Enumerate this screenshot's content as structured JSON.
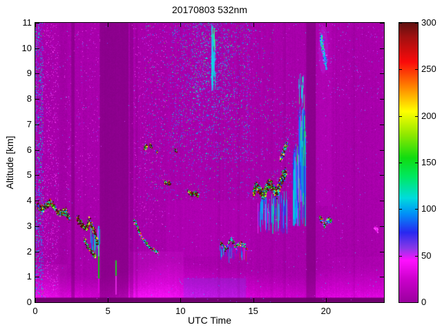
{
  "chart_data": {
    "type": "heatmap",
    "title": "20170803 532nm",
    "xlabel": "UTC Time",
    "ylabel": "Altitude [km]",
    "xlim": [
      0,
      24
    ],
    "ylim": [
      0,
      11
    ],
    "xticks": [
      0,
      5,
      10,
      15,
      20
    ],
    "yticks": [
      0,
      1,
      2,
      3,
      4,
      5,
      6,
      7,
      8,
      9,
      10,
      11
    ],
    "colorbar": {
      "min": 0,
      "max": 300,
      "ticks": [
        0,
        50,
        100,
        150,
        200,
        250,
        300
      ],
      "stops": [
        [
          0,
          "#9A009E"
        ],
        [
          25,
          "#CC00CC"
        ],
        [
          45,
          "#FF10FF"
        ],
        [
          58,
          "#8838E8"
        ],
        [
          75,
          "#2828F0"
        ],
        [
          95,
          "#0090F8"
        ],
        [
          112,
          "#00DCDC"
        ],
        [
          135,
          "#00E860"
        ],
        [
          155,
          "#10DC10"
        ],
        [
          180,
          "#90E800"
        ],
        [
          205,
          "#FFFF00"
        ],
        [
          232,
          "#FF8000"
        ],
        [
          258,
          "#FA0A0A"
        ],
        [
          285,
          "#A01010"
        ],
        [
          300,
          "#5E1010"
        ]
      ]
    },
    "scene": {
      "background": {
        "base": 3,
        "amp": 9
      },
      "boundary_layer": {
        "k": [
          [
            0,
            14
          ],
          [
            2,
            12
          ],
          [
            4,
            10
          ],
          [
            4.5,
            9
          ],
          [
            6.6,
            16
          ],
          [
            9,
            15
          ],
          [
            11,
            12
          ],
          [
            14,
            11
          ],
          [
            17,
            10
          ],
          [
            18.6,
            9
          ],
          [
            19.4,
            11
          ],
          [
            22,
            12
          ],
          [
            24,
            12
          ]
        ],
        "h": [
          [
            0,
            1.5
          ],
          [
            2,
            1.2
          ],
          [
            4,
            1.0
          ],
          [
            6.6,
            1.3
          ],
          [
            9,
            1.9
          ],
          [
            12,
            1.5
          ],
          [
            15,
            1.3
          ],
          [
            18.6,
            1.1
          ],
          [
            19.4,
            1.4
          ],
          [
            24,
            1.5
          ]
        ]
      },
      "bottom_band": {
        "a_top": 0.18,
        "c": "#6A006A",
        "al": 0.95
      },
      "gaps": [
        {
          "u0": 1.7,
          "u1": 2.2,
          "alpha": 0.12
        },
        {
          "u0": 2.48,
          "u1": 2.72,
          "alpha": 0.45
        },
        {
          "u0": 4.45,
          "u1": 6.42,
          "alpha": 0.5
        },
        {
          "u0": 6.5,
          "u1": 6.75,
          "alpha": 0.35
        },
        {
          "u0": 6.9,
          "u1": 7.05,
          "alpha": 0.2
        },
        {
          "u0": 12.55,
          "u1": 12.72,
          "alpha": 0.12
        },
        {
          "u0": 13.9,
          "u1": 14.08,
          "alpha": 0.12
        },
        {
          "u0": 16.15,
          "u1": 16.35,
          "alpha": 0.12
        },
        {
          "u0": 17.05,
          "u1": 17.25,
          "alpha": 0.12
        },
        {
          "u0": 18.65,
          "u1": 19.3,
          "alpha": 0.5
        },
        {
          "u0": 21.9,
          "u1": 22.0,
          "alpha": 0.15
        }
      ],
      "glows": [
        {
          "u0": 0,
          "u1": 2.2,
          "a0": 0,
          "a1": 1.5,
          "c": "#FF30FF",
          "al": 0.1
        },
        {
          "u0": 6.5,
          "u1": 10.2,
          "a0": 0,
          "a1": 2.0,
          "c": "#FF30FF",
          "al": 0.12
        },
        {
          "u0": 10.2,
          "u1": 14.5,
          "a0": 0.15,
          "a1": 0.95,
          "c": "#5060FF",
          "al": 0.2
        },
        {
          "u0": 9.0,
          "u1": 14.8,
          "a0": 1.8,
          "a1": 4.0,
          "c": "#D800D8",
          "al": 0.12
        },
        {
          "u0": 19.32,
          "u1": 20.4,
          "a0": 3.8,
          "a1": 11,
          "c": "#E810E8",
          "al": 0.1
        },
        {
          "u0": 20.4,
          "u1": 24,
          "a0": 0,
          "a1": 1.8,
          "c": "#E810E8",
          "al": 0.08
        },
        {
          "u0": 19.5,
          "u1": 20.15,
          "a0": 9.0,
          "a1": 10.9,
          "c": "#C844FF",
          "al": 0.22,
          "shape": "ellipse"
        }
      ],
      "palettes": {
        "cloud": [
          [
            "#4A0E0E",
            40
          ],
          [
            "#8C1212",
            10
          ],
          [
            "#E02810",
            6
          ],
          [
            "#18C818",
            14
          ],
          [
            "#B4FF14",
            5
          ],
          [
            "#FFFF28",
            5
          ],
          [
            "#00E0E0",
            10
          ],
          [
            "#2840FF",
            10
          ]
        ],
        "lowcloud": [
          [
            "#4A0E0E",
            26
          ],
          [
            "#E02810",
            6
          ],
          [
            "#18C818",
            20
          ],
          [
            "#FFFF28",
            6
          ],
          [
            "#00E0E0",
            20
          ],
          [
            "#2840FF",
            12
          ],
          [
            "#FF30FF",
            10
          ]
        ],
        "ice": [
          [
            "#00E0E0",
            30
          ],
          [
            "#28A0FF",
            24
          ],
          [
            "#2840FF",
            18
          ],
          [
            "#28FF5A",
            16
          ],
          [
            "#DC40FF",
            12
          ]
        ],
        "colstreak": [
          [
            "#2838F0",
            34
          ],
          [
            "#00A8FF",
            24
          ],
          [
            "#00E8D0",
            14
          ],
          [
            "#7040FF",
            10
          ],
          [
            "#1EDC3C",
            8
          ],
          [
            "#C03030",
            4
          ],
          [
            "#FF30FF",
            6
          ]
        ],
        "bluespeck": [
          [
            "#5050FF",
            40
          ],
          [
            "#00A8FF",
            28
          ],
          [
            "#00FFC8",
            16
          ],
          [
            "#36E636",
            8
          ],
          [
            "#C846FF",
            8
          ]
        ],
        "magspeck": [
          [
            "#E630E6",
            55
          ],
          [
            "#FF50FF",
            30
          ],
          [
            "#B446FF",
            15
          ]
        ],
        "mixspeck": [
          [
            "#D040FF",
            45
          ],
          [
            "#7050FF",
            30
          ],
          [
            "#40C0FF",
            25
          ]
        ],
        "cyanspeck": [
          [
            "#00E0E0",
            45
          ],
          [
            "#30B0FF",
            30
          ],
          [
            "#30FF80",
            25
          ]
        ],
        "faint": [
          [
            "#FF40FF",
            60
          ],
          [
            "#E000E0",
            40
          ]
        ]
      },
      "clouds": [
        {
          "path": [
            [
              0.15,
              3.85
            ],
            [
              0.4,
              3.65
            ],
            [
              0.7,
              3.8
            ],
            [
              1.0,
              3.95
            ],
            [
              1.25,
              3.8
            ],
            [
              1.5,
              3.55
            ],
            [
              1.8,
              3.5
            ],
            [
              2.1,
              3.6
            ],
            [
              2.35,
              3.28
            ]
          ],
          "ru": 0.1,
          "ra": 0.14,
          "n": 900,
          "palette": "cloud"
        },
        {
          "path": [
            [
              2.85,
              3.35
            ],
            [
              3.1,
              3.15
            ],
            [
              3.35,
              2.95
            ],
            [
              3.55,
              2.9
            ],
            [
              3.7,
              3.25
            ],
            [
              3.85,
              3.05
            ],
            [
              4.0,
              2.85
            ],
            [
              4.15,
              2.6
            ],
            [
              4.32,
              2.3
            ]
          ],
          "ru": 0.09,
          "ra": 0.13,
          "n": 700,
          "palette": "cloud"
        },
        {
          "path": [
            [
              3.35,
              2.5
            ],
            [
              3.6,
              2.2
            ],
            [
              3.85,
              2.0
            ],
            [
              4.1,
              1.8
            ]
          ],
          "ru": 0.07,
          "ra": 0.1,
          "n": 220,
          "palette": "cloud"
        },
        {
          "path": [
            [
              6.75,
              3.3
            ],
            [
              7.0,
              3.0
            ],
            [
              7.2,
              2.7
            ],
            [
              7.5,
              2.4
            ],
            [
              7.8,
              2.2
            ],
            [
              8.15,
              2.05
            ],
            [
              8.5,
              1.95
            ]
          ],
          "ru": 0.07,
          "ra": 0.1,
          "n": 260,
          "palette": "lowcloud"
        },
        {
          "path": [
            [
              7.5,
              6.05
            ],
            [
              7.65,
              6.15
            ]
          ],
          "ru": 0.08,
          "ra": 0.09,
          "n": 90,
          "palette": "cloud"
        },
        {
          "path": [
            [
              7.9,
              6.2
            ],
            [
              8.0,
              6.1
            ]
          ],
          "ru": 0.06,
          "ra": 0.07,
          "n": 55,
          "palette": "cloud"
        },
        {
          "path": [
            [
              8.3,
              5.95
            ],
            [
              8.4,
              5.9
            ]
          ],
          "ru": 0.05,
          "ra": 0.06,
          "n": 40,
          "palette": "cloud"
        },
        {
          "path": [
            [
              9.6,
              6.0
            ],
            [
              9.75,
              5.95
            ]
          ],
          "ru": 0.06,
          "ra": 0.07,
          "n": 50,
          "palette": "cloud"
        },
        {
          "path": [
            [
              8.9,
              4.75
            ],
            [
              9.1,
              4.65
            ],
            [
              9.3,
              4.7
            ]
          ],
          "ru": 0.08,
          "ra": 0.08,
          "n": 110,
          "palette": "cloud"
        },
        {
          "path": [
            [
              10.5,
              4.4
            ],
            [
              10.75,
              4.25
            ],
            [
              11.0,
              4.3
            ],
            [
              11.2,
              4.2
            ]
          ],
          "ru": 0.09,
          "ra": 0.1,
          "n": 170,
          "palette": "cloud"
        },
        {
          "path": [
            [
              12.75,
              2.35
            ],
            [
              13.1,
              2.1
            ],
            [
              13.45,
              2.5
            ],
            [
              13.8,
              2.2
            ],
            [
              14.2,
              2.35
            ],
            [
              14.55,
              2.1
            ]
          ],
          "ru": 0.06,
          "ra": 0.12,
          "n": 230,
          "palette": "lowcloud"
        },
        {
          "path": [
            [
              15.0,
              4.3
            ],
            [
              15.2,
              4.6
            ],
            [
              15.45,
              4.4
            ],
            [
              15.7,
              4.2
            ],
            [
              15.9,
              4.5
            ],
            [
              16.1,
              4.7
            ],
            [
              16.35,
              4.5
            ],
            [
              16.6,
              4.3
            ],
            [
              16.8,
              4.6
            ],
            [
              17.0,
              4.9
            ],
            [
              17.25,
              5.15
            ]
          ],
          "ru": 0.11,
          "ra": 0.22,
          "n": 1500,
          "palette": "cloud"
        },
        {
          "path": [
            [
              16.85,
              5.6
            ],
            [
              17.05,
              5.9
            ],
            [
              17.3,
              6.3
            ]
          ],
          "ru": 0.07,
          "ra": 0.15,
          "n": 200,
          "palette": "lowcloud"
        },
        {
          "path": [
            [
              19.55,
              3.35
            ],
            [
              19.75,
              3.2
            ],
            [
              19.95,
              3.0
            ],
            [
              20.15,
              3.3
            ],
            [
              20.4,
              3.15
            ]
          ],
          "ru": 0.08,
          "ra": 0.12,
          "n": 300,
          "palette": "lowcloud"
        },
        {
          "path": [
            [
              19.62,
              10.5
            ],
            [
              19.72,
              10.2
            ],
            [
              19.82,
              9.9
            ],
            [
              19.92,
              9.6
            ],
            [
              20.02,
              9.35
            ]
          ],
          "ru": 0.07,
          "ra": 0.35,
          "n": 330,
          "palette": "ice"
        },
        {
          "path": [
            [
              23.35,
              2.95
            ],
            [
              23.55,
              2.85
            ]
          ],
          "ru": 0.08,
          "ra": 0.1,
          "n": 60,
          "palette": "faint"
        }
      ],
      "streaks": [
        {
          "u": 4.35,
          "a0": 0.35,
          "a1": 3.0,
          "w": 2,
          "segs": [
            [
              0,
              0.22,
              "#DC00DC"
            ],
            [
              0.22,
              0.55,
              "#00DC00"
            ],
            [
              0.55,
              0.8,
              "#30FF80"
            ],
            [
              0.8,
              1,
              "#00E0E0"
            ]
          ]
        },
        {
          "u": 5.55,
          "a0": 0.3,
          "a1": 1.65,
          "w": 2,
          "segs": [
            [
              0,
              0.55,
              "#E628E6"
            ],
            [
              0.55,
              1,
              "#1EDC1E"
            ]
          ]
        }
      ],
      "columns": [
        {
          "u0": 3.8,
          "u1": 4.45,
          "a0": 1.7,
          "a1": 3.0,
          "n": 28,
          "len": [
            0.3,
            0.9
          ],
          "palette": "colstreak"
        },
        {
          "u0": 12.12,
          "u1": 12.38,
          "a0": 6.8,
          "a1": 11.0,
          "n": 70,
          "len": [
            0.2,
            0.8
          ],
          "palette": "cyanspeck"
        },
        {
          "u0": 12.7,
          "u1": 14.6,
          "a0": 1.55,
          "a1": 2.3,
          "n": 26,
          "len": [
            0.2,
            0.5
          ],
          "palette": "colstreak"
        },
        {
          "u0": 15.3,
          "u1": 17.35,
          "a0": 2.7,
          "a1": 4.4,
          "n": 70,
          "len": [
            0.3,
            1.2
          ],
          "palette": "colstreak"
        },
        {
          "u0": 17.75,
          "u1": 18.12,
          "a0": 3.0,
          "a1": 6.2,
          "n": 100,
          "len": [
            0.5,
            2.2
          ],
          "palette": "colstreak"
        },
        {
          "u0": 18.1,
          "u1": 18.62,
          "a0": 3.0,
          "a1": 7.7,
          "n": 120,
          "len": [
            0.5,
            2.8
          ],
          "palette": "colstreak"
        },
        {
          "u0": 18.15,
          "u1": 18.5,
          "a0": 7.0,
          "a1": 9.0,
          "n": 18,
          "len": [
            0.2,
            0.6
          ],
          "palette": "cyanspeck"
        }
      ],
      "speckles": [
        {
          "u0": 0,
          "u1": 24,
          "a0": 0,
          "a1": 11,
          "d": 0.004,
          "palette": "mixspeck"
        },
        {
          "u0": 0,
          "u1": 0.55,
          "a0": 0.2,
          "a1": 11,
          "d": 0.22,
          "palette": "bluespeck"
        },
        {
          "u0": 0.55,
          "u1": 1.6,
          "a0": 0.2,
          "a1": 11,
          "d": 0.06,
          "palette": "magspeck"
        },
        {
          "u0": 7.5,
          "u1": 16.5,
          "a0": 4.0,
          "a1": 11,
          "d": 0.022,
          "palette": "bluespeck"
        },
        {
          "u0": 9.3,
          "u1": 14.8,
          "a0": 5.5,
          "a1": 11,
          "d": 0.05,
          "palette": "bluespeck"
        },
        {
          "u0": 10.8,
          "u1": 13.4,
          "a0": 7.5,
          "a1": 11,
          "d": 0.05,
          "palette": "cyanspeck"
        },
        {
          "u0": 16.5,
          "u1": 18.7,
          "a0": 4.5,
          "a1": 8.0,
          "d": 0.03,
          "palette": "bluespeck"
        },
        {
          "u0": 19.4,
          "u1": 24,
          "a0": 8.0,
          "a1": 11,
          "d": 0.012,
          "palette": "mixspeck"
        },
        {
          "u0": 2.0,
          "u1": 4.45,
          "a0": 4.0,
          "a1": 11,
          "d": 0.015,
          "palette": "magspeck"
        },
        {
          "u0": 6.5,
          "u1": 9.0,
          "a0": 3.0,
          "a1": 11,
          "d": 0.02,
          "palette": "magspeck"
        }
      ]
    }
  }
}
